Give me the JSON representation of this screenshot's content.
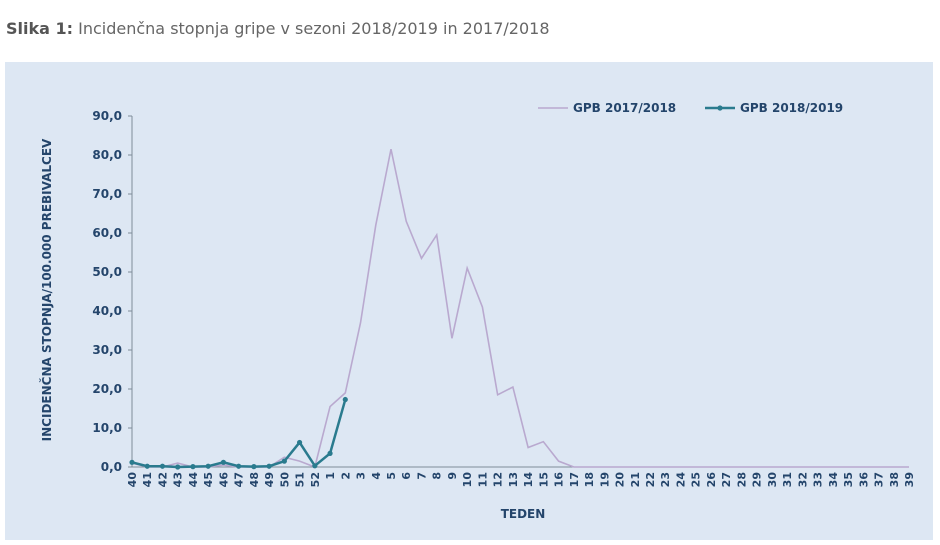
{
  "chart_data": {
    "type": "line",
    "figure_label": "Slika 1:",
    "title": "Incidenčna stopnja gripe v sezoni 2018/2019 in 2017/2018",
    "xlabel": "TEDEN",
    "ylabel": "INCIDENČNA STOPNJA/100.000 PREBIVALCEV",
    "categories": [
      "40",
      "41",
      "42",
      "43",
      "44",
      "45",
      "46",
      "47",
      "48",
      "49",
      "50",
      "51",
      "52",
      "1",
      "2",
      "3",
      "4",
      "5",
      "6",
      "7",
      "8",
      "9",
      "10",
      "11",
      "12",
      "13",
      "14",
      "15",
      "16",
      "17",
      "18",
      "19",
      "20",
      "21",
      "22",
      "23",
      "24",
      "25",
      "26",
      "27",
      "28",
      "29",
      "30",
      "31",
      "32",
      "33",
      "34",
      "35",
      "36",
      "37",
      "38",
      "39"
    ],
    "series": [
      {
        "name": "GPB 2017/2018",
        "color": "#b9a9cf",
        "markers": false,
        "values": [
          1,
          0,
          0,
          1,
          0,
          0,
          0.5,
          0,
          0,
          0,
          2.5,
          1.5,
          0,
          15.5,
          19,
          37,
          62,
          81.5,
          63,
          53.5,
          59.5,
          33,
          51,
          41,
          18.5,
          20.5,
          5,
          6.5,
          1.5,
          0,
          0,
          0,
          0,
          0,
          0,
          0,
          0,
          0,
          0,
          0,
          0,
          0,
          0,
          0,
          0,
          0,
          0,
          0,
          0,
          0,
          0,
          0
        ]
      },
      {
        "name": "GPB 2018/2019",
        "color": "#2a7b8e",
        "markers": true,
        "values": [
          1.2,
          0.2,
          0.2,
          0,
          0.1,
          0.2,
          1.2,
          0.2,
          0.1,
          0.2,
          1.5,
          6.3,
          0.3,
          3.5,
          17.3,
          null,
          null,
          null,
          null,
          null,
          null,
          null,
          null,
          null,
          null,
          null,
          null,
          null,
          null,
          null,
          null,
          null,
          null,
          null,
          null,
          null,
          null,
          null,
          null,
          null,
          null,
          null,
          null,
          null,
          null,
          null,
          null,
          null,
          null,
          null,
          null,
          null
        ]
      }
    ],
    "ylim": [
      0,
      90
    ],
    "yticks": [
      {
        "value": 0,
        "label": "0,0"
      },
      {
        "value": 10,
        "label": "10,0"
      },
      {
        "value": 20,
        "label": "20,0"
      },
      {
        "value": 30,
        "label": "30,0"
      },
      {
        "value": 40,
        "label": "40,0"
      },
      {
        "value": 50,
        "label": "50,0"
      },
      {
        "value": 60,
        "label": "60,0"
      },
      {
        "value": 70,
        "label": "70,0"
      },
      {
        "value": 80,
        "label": "80,0"
      },
      {
        "value": 90,
        "label": "90,0"
      }
    ],
    "legend": "upper right"
  }
}
